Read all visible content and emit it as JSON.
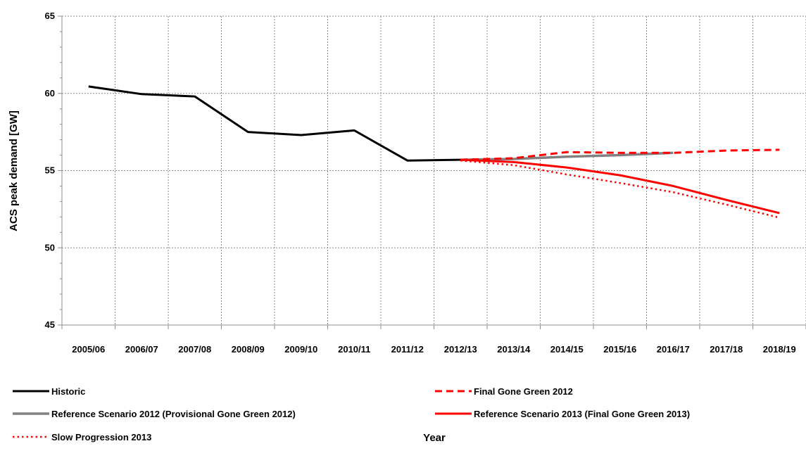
{
  "chart_data": {
    "type": "line",
    "xlabel": "Year",
    "ylabel": "ACS peak demand  [GW]",
    "ylim": [
      45,
      65
    ],
    "yticks": [
      45,
      50,
      55,
      60,
      65
    ],
    "grid": true,
    "legend_position": "bottom",
    "categories": [
      "2005/06",
      "2006/07",
      "2007/08",
      "2008/09",
      "2009/10",
      "2010/11",
      "2011/12",
      "2012/13",
      "2013/14",
      "2014/15",
      "2015/16",
      "2016/17",
      "2017/18",
      "2018/19"
    ],
    "series": [
      {
        "name": "Historic",
        "color": "#000000",
        "style": "solid",
        "values": [
          60.45,
          59.95,
          59.8,
          57.5,
          57.3,
          57.6,
          55.65,
          55.7,
          null,
          null,
          null,
          null,
          null,
          null
        ]
      },
      {
        "name": "Final Gone Green 2012",
        "color": "#ff0000",
        "style": "dashed",
        "values": [
          null,
          null,
          null,
          null,
          null,
          null,
          null,
          55.7,
          55.8,
          56.2,
          56.15,
          56.15,
          56.3,
          56.35
        ]
      },
      {
        "name": "Reference Scenario 2012 (Provisional Gone Green 2012)",
        "color": "#808080",
        "style": "solid",
        "values": [
          null,
          null,
          null,
          null,
          null,
          null,
          null,
          55.7,
          55.75,
          55.9,
          56.0,
          56.15,
          null,
          null
        ]
      },
      {
        "name": "Reference Scenario 2013 (Final Gone Green 2013)",
        "color": "#ff0000",
        "style": "solid",
        "values": [
          null,
          null,
          null,
          null,
          null,
          null,
          null,
          55.7,
          55.55,
          55.2,
          54.7,
          54.0,
          53.1,
          52.25
        ]
      },
      {
        "name": "Slow Progression 2013",
        "color": "#ff0000",
        "style": "dotted",
        "values": [
          null,
          null,
          null,
          null,
          null,
          null,
          null,
          55.65,
          55.35,
          54.75,
          54.2,
          53.6,
          52.8,
          51.95
        ]
      }
    ]
  }
}
